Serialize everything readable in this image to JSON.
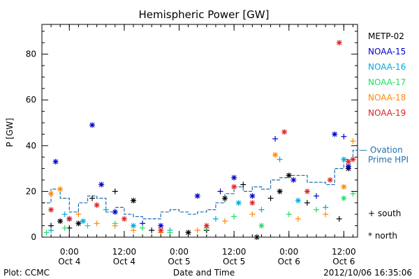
{
  "chart_data": {
    "type": "scatter",
    "title": "Hemispheric Power [GW]",
    "ylabel": "P [GW]",
    "xlabel": "Date and Time",
    "xlim": [
      "2012-10-03T18:00",
      "2012-10-06T15:00"
    ],
    "ylim": [
      0,
      93
    ],
    "yticks": [
      0,
      20,
      40,
      60,
      80
    ],
    "xticks": [
      {
        "t": "2012-10-04T00:00",
        "line1": "0:00",
        "line2": "Oct 4"
      },
      {
        "t": "2012-10-04T12:00",
        "line1": "12:00",
        "line2": "Oct 4"
      },
      {
        "t": "2012-10-05T00:00",
        "line1": "0:00",
        "line2": "Oct 5"
      },
      {
        "t": "2012-10-05T12:00",
        "line1": "12:00",
        "line2": "Oct 5"
      },
      {
        "t": "2012-10-06T00:00",
        "line1": "0:00",
        "line2": "Oct 6"
      },
      {
        "t": "2012-10-06T12:00",
        "line1": "12:00",
        "line2": "Oct 6"
      }
    ],
    "legend_placement": "right",
    "marker_legend": [
      {
        "marker": "plus",
        "label": "+ south"
      },
      {
        "marker": "asterisk",
        "label": "* north"
      }
    ],
    "series": [
      {
        "name": "METP-02",
        "color": "#000000",
        "points": [
          [
            "2012-10-03T20:00",
            5,
            "p"
          ],
          [
            "2012-10-03T22:00",
            7,
            "a"
          ],
          [
            "2012-10-04T00:00",
            4,
            "p"
          ],
          [
            "2012-10-04T02:00",
            6,
            "a"
          ],
          [
            "2012-10-04T05:00",
            17,
            "p"
          ],
          [
            "2012-10-04T10:00",
            20,
            "p"
          ],
          [
            "2012-10-04T14:00",
            16,
            "a"
          ],
          [
            "2012-10-04T18:00",
            3,
            "p"
          ],
          [
            "2012-10-05T02:00",
            2,
            "a"
          ],
          [
            "2012-10-05T06:00",
            3,
            "p"
          ],
          [
            "2012-10-05T10:00",
            17,
            "a"
          ],
          [
            "2012-10-05T14:00",
            23,
            "p"
          ],
          [
            "2012-10-05T17:00",
            0,
            "a"
          ],
          [
            "2012-10-05T20:00",
            17,
            "p"
          ],
          [
            "2012-10-05T22:00",
            20,
            "a"
          ],
          [
            "2012-10-06T00:00",
            27,
            "a"
          ],
          [
            "2012-10-06T04:00",
            15,
            "p"
          ],
          [
            "2012-10-06T11:00",
            8,
            "p"
          ],
          [
            "2012-10-06T13:00",
            30,
            "a"
          ]
        ]
      },
      {
        "name": "NOAA-15",
        "color": "#0000cc",
        "points": [
          [
            "2012-10-03T21:00",
            33,
            "a"
          ],
          [
            "2012-10-04T00:00",
            8,
            "a"
          ],
          [
            "2012-10-04T05:00",
            49,
            "a"
          ],
          [
            "2012-10-04T07:00",
            23,
            "a"
          ],
          [
            "2012-10-04T10:00",
            11,
            "a"
          ],
          [
            "2012-10-04T16:00",
            6,
            "p"
          ],
          [
            "2012-10-04T20:00",
            5,
            "a"
          ],
          [
            "2012-10-05T04:00",
            18,
            "a"
          ],
          [
            "2012-10-05T09:00",
            20,
            "p"
          ],
          [
            "2012-10-05T12:00",
            26,
            "a"
          ],
          [
            "2012-10-05T16:00",
            18,
            "a"
          ],
          [
            "2012-10-05T21:00",
            43,
            "p"
          ],
          [
            "2012-10-06T01:00",
            25,
            "a"
          ],
          [
            "2012-10-06T06:00",
            18,
            "p"
          ],
          [
            "2012-10-06T10:00",
            45,
            "a"
          ],
          [
            "2012-10-06T12:00",
            44,
            "p"
          ],
          [
            "2012-10-06T13:00",
            31,
            "a"
          ]
        ]
      },
      {
        "name": "NOAA-16",
        "color": "#00aadd",
        "points": [
          [
            "2012-10-03T20:00",
            3,
            "p"
          ],
          [
            "2012-10-03T23:00",
            10,
            "p"
          ],
          [
            "2012-10-04T03:00",
            7,
            "a"
          ],
          [
            "2012-10-04T08:00",
            12,
            "p"
          ],
          [
            "2012-10-04T14:00",
            5,
            "a"
          ],
          [
            "2012-10-04T22:00",
            3,
            "p"
          ],
          [
            "2012-10-05T08:00",
            8,
            "p"
          ],
          [
            "2012-10-05T13:00",
            15,
            "a"
          ],
          [
            "2012-10-05T18:00",
            12,
            "p"
          ],
          [
            "2012-10-05T22:00",
            34,
            "p"
          ],
          [
            "2012-10-06T02:00",
            16,
            "a"
          ],
          [
            "2012-10-06T08:00",
            13,
            "p"
          ],
          [
            "2012-10-06T12:00",
            34,
            "a"
          ]
        ]
      },
      {
        "name": "NOAA-17",
        "color": "#22dd66",
        "points": [
          [
            "2012-10-03T19:00",
            2,
            "p"
          ],
          [
            "2012-10-03T23:00",
            4,
            "p"
          ],
          [
            "2012-10-04T04:00",
            5,
            "p"
          ],
          [
            "2012-10-04T10:00",
            6,
            "p"
          ],
          [
            "2012-10-04T16:00",
            4,
            "p"
          ],
          [
            "2012-10-04T22:00",
            2,
            "p"
          ],
          [
            "2012-10-05T06:00",
            4,
            "p"
          ],
          [
            "2012-10-05T12:00",
            9,
            "p"
          ],
          [
            "2012-10-05T18:00",
            5,
            "a"
          ],
          [
            "2012-10-06T00:00",
            10,
            "p"
          ],
          [
            "2012-10-06T06:00",
            12,
            "p"
          ],
          [
            "2012-10-06T12:00",
            17,
            "a"
          ],
          [
            "2012-10-06T14:00",
            19,
            "p"
          ]
        ]
      },
      {
        "name": "NOAA-18",
        "color": "#ff8800",
        "points": [
          [
            "2012-10-03T20:00",
            19,
            "a"
          ],
          [
            "2012-10-03T22:00",
            21,
            "a"
          ],
          [
            "2012-10-04T02:00",
            10,
            "p"
          ],
          [
            "2012-10-04T06:00",
            6,
            "p"
          ],
          [
            "2012-10-04T10:00",
            5,
            "p"
          ],
          [
            "2012-10-04T14:00",
            3,
            "p"
          ],
          [
            "2012-10-04T20:00",
            2,
            "p"
          ],
          [
            "2012-10-05T04:00",
            3,
            "p"
          ],
          [
            "2012-10-05T10:00",
            7,
            "p"
          ],
          [
            "2012-10-05T16:00",
            10,
            "p"
          ],
          [
            "2012-10-05T21:00",
            36,
            "a"
          ],
          [
            "2012-10-06T02:00",
            8,
            "p"
          ],
          [
            "2012-10-06T08:00",
            10,
            "p"
          ],
          [
            "2012-10-06T12:00",
            22,
            "a"
          ],
          [
            "2012-10-06T14:00",
            42,
            "p"
          ]
        ]
      },
      {
        "name": "NOAA-19",
        "color": "#dd2222",
        "points": [
          [
            "2012-10-03T20:00",
            12,
            "a"
          ],
          [
            "2012-10-04T00:00",
            8,
            "a"
          ],
          [
            "2012-10-04T06:00",
            14,
            "a"
          ],
          [
            "2012-10-04T12:00",
            8,
            "a"
          ],
          [
            "2012-10-04T20:00",
            3,
            "a"
          ],
          [
            "2012-10-05T06:00",
            5,
            "a"
          ],
          [
            "2012-10-05T12:00",
            22,
            "a"
          ],
          [
            "2012-10-05T16:00",
            15,
            "a"
          ],
          [
            "2012-10-05T23:00",
            46,
            "a"
          ],
          [
            "2012-10-06T04:00",
            20,
            "a"
          ],
          [
            "2012-10-06T09:00",
            25,
            "a"
          ],
          [
            "2012-10-06T11:00",
            85,
            "a"
          ],
          [
            "2012-10-06T13:00",
            33,
            "a"
          ],
          [
            "2012-10-06T14:00",
            34,
            "a"
          ]
        ]
      }
    ],
    "hpi_series": {
      "label_line1": "— Ovation",
      "label_line2": "Prime HPI",
      "color": "#1f6fb0",
      "points": [
        [
          "2012-10-03T18:00",
          15
        ],
        [
          "2012-10-03T20:00",
          21
        ],
        [
          "2012-10-03T22:00",
          17
        ],
        [
          "2012-10-04T00:00",
          11
        ],
        [
          "2012-10-04T02:00",
          15
        ],
        [
          "2012-10-04T04:00",
          18
        ],
        [
          "2012-10-04T06:00",
          17
        ],
        [
          "2012-10-04T08:00",
          11
        ],
        [
          "2012-10-04T10:00",
          13
        ],
        [
          "2012-10-04T12:00",
          10
        ],
        [
          "2012-10-04T14:00",
          9
        ],
        [
          "2012-10-04T16:00",
          8
        ],
        [
          "2012-10-04T18:00",
          8
        ],
        [
          "2012-10-04T20:00",
          11
        ],
        [
          "2012-10-04T22:00",
          12
        ],
        [
          "2012-10-05T00:00",
          11
        ],
        [
          "2012-10-05T02:00",
          10
        ],
        [
          "2012-10-05T04:00",
          11
        ],
        [
          "2012-10-05T06:00",
          12
        ],
        [
          "2012-10-05T08:00",
          15
        ],
        [
          "2012-10-05T10:00",
          19
        ],
        [
          "2012-10-05T12:00",
          22
        ],
        [
          "2012-10-05T14:00",
          20
        ],
        [
          "2012-10-05T16:00",
          22
        ],
        [
          "2012-10-05T18:00",
          21
        ],
        [
          "2012-10-05T20:00",
          25
        ],
        [
          "2012-10-05T22:00",
          26
        ],
        [
          "2012-10-06T00:00",
          27
        ],
        [
          "2012-10-06T02:00",
          27
        ],
        [
          "2012-10-06T04:00",
          24
        ],
        [
          "2012-10-06T06:00",
          24
        ],
        [
          "2012-10-06T08:00",
          23
        ],
        [
          "2012-10-06T10:00",
          30
        ],
        [
          "2012-10-06T12:00",
          34
        ],
        [
          "2012-10-06T14:00",
          38
        ]
      ]
    }
  },
  "footer": {
    "plot_label": "Plot: CCMC",
    "timestamp": "2012/10/06 16:35:06"
  }
}
